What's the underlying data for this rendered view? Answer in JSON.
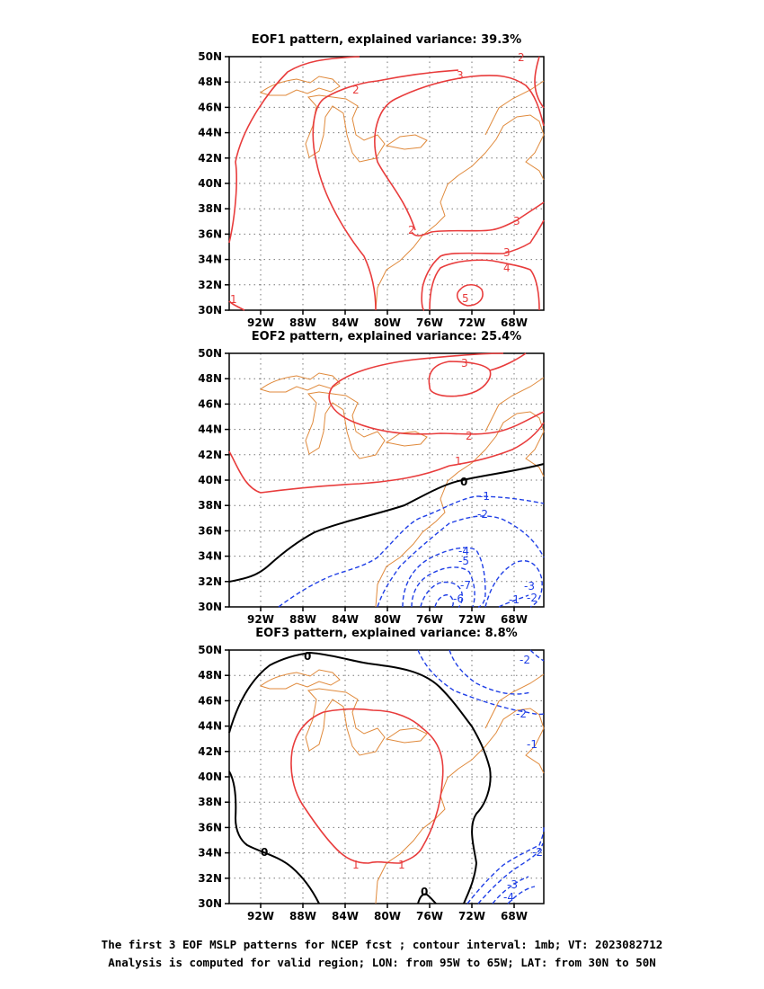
{
  "panels": [
    {
      "title": "EOF1 pattern, explained variance: 39.3%",
      "contour_labels": [
        "2",
        "3",
        "2",
        "3",
        "3",
        "4",
        "5",
        "1",
        "2"
      ]
    },
    {
      "title": "EOF2 pattern, explained variance: 25.4%",
      "contour_labels": [
        "3",
        "2",
        "1",
        "0",
        "-1",
        "-2",
        "-4",
        "-5",
        "-7",
        "-6",
        "-3",
        "-1",
        "-2"
      ]
    },
    {
      "title": "EOF3 pattern, explained variance: 8.8%",
      "contour_labels": [
        "0",
        "1",
        "1",
        "0",
        "0",
        "-2",
        "-2",
        "-1",
        "-2",
        "-3",
        "-4"
      ]
    }
  ],
  "lat_ticks": [
    "50N",
    "48N",
    "46N",
    "44N",
    "42N",
    "40N",
    "38N",
    "36N",
    "34N",
    "32N",
    "30N"
  ],
  "lon_ticks": [
    "92W",
    "88W",
    "84W",
    "80W",
    "76W",
    "72W",
    "68W"
  ],
  "footer": {
    "line1": "The first 3 EOF MSLP patterns for NCEP fcst ; contour interval: 1mb; VT: 2023082712",
    "line2": "Analysis is computed for valid region; LON: from 95W to 65W; LAT: from 30N to 50N"
  },
  "colors": {
    "positive": "#e83c3c",
    "negative": "#1f3fe6",
    "zero": "#000000",
    "coast": "#e08a3c",
    "grid": "#777777"
  }
}
